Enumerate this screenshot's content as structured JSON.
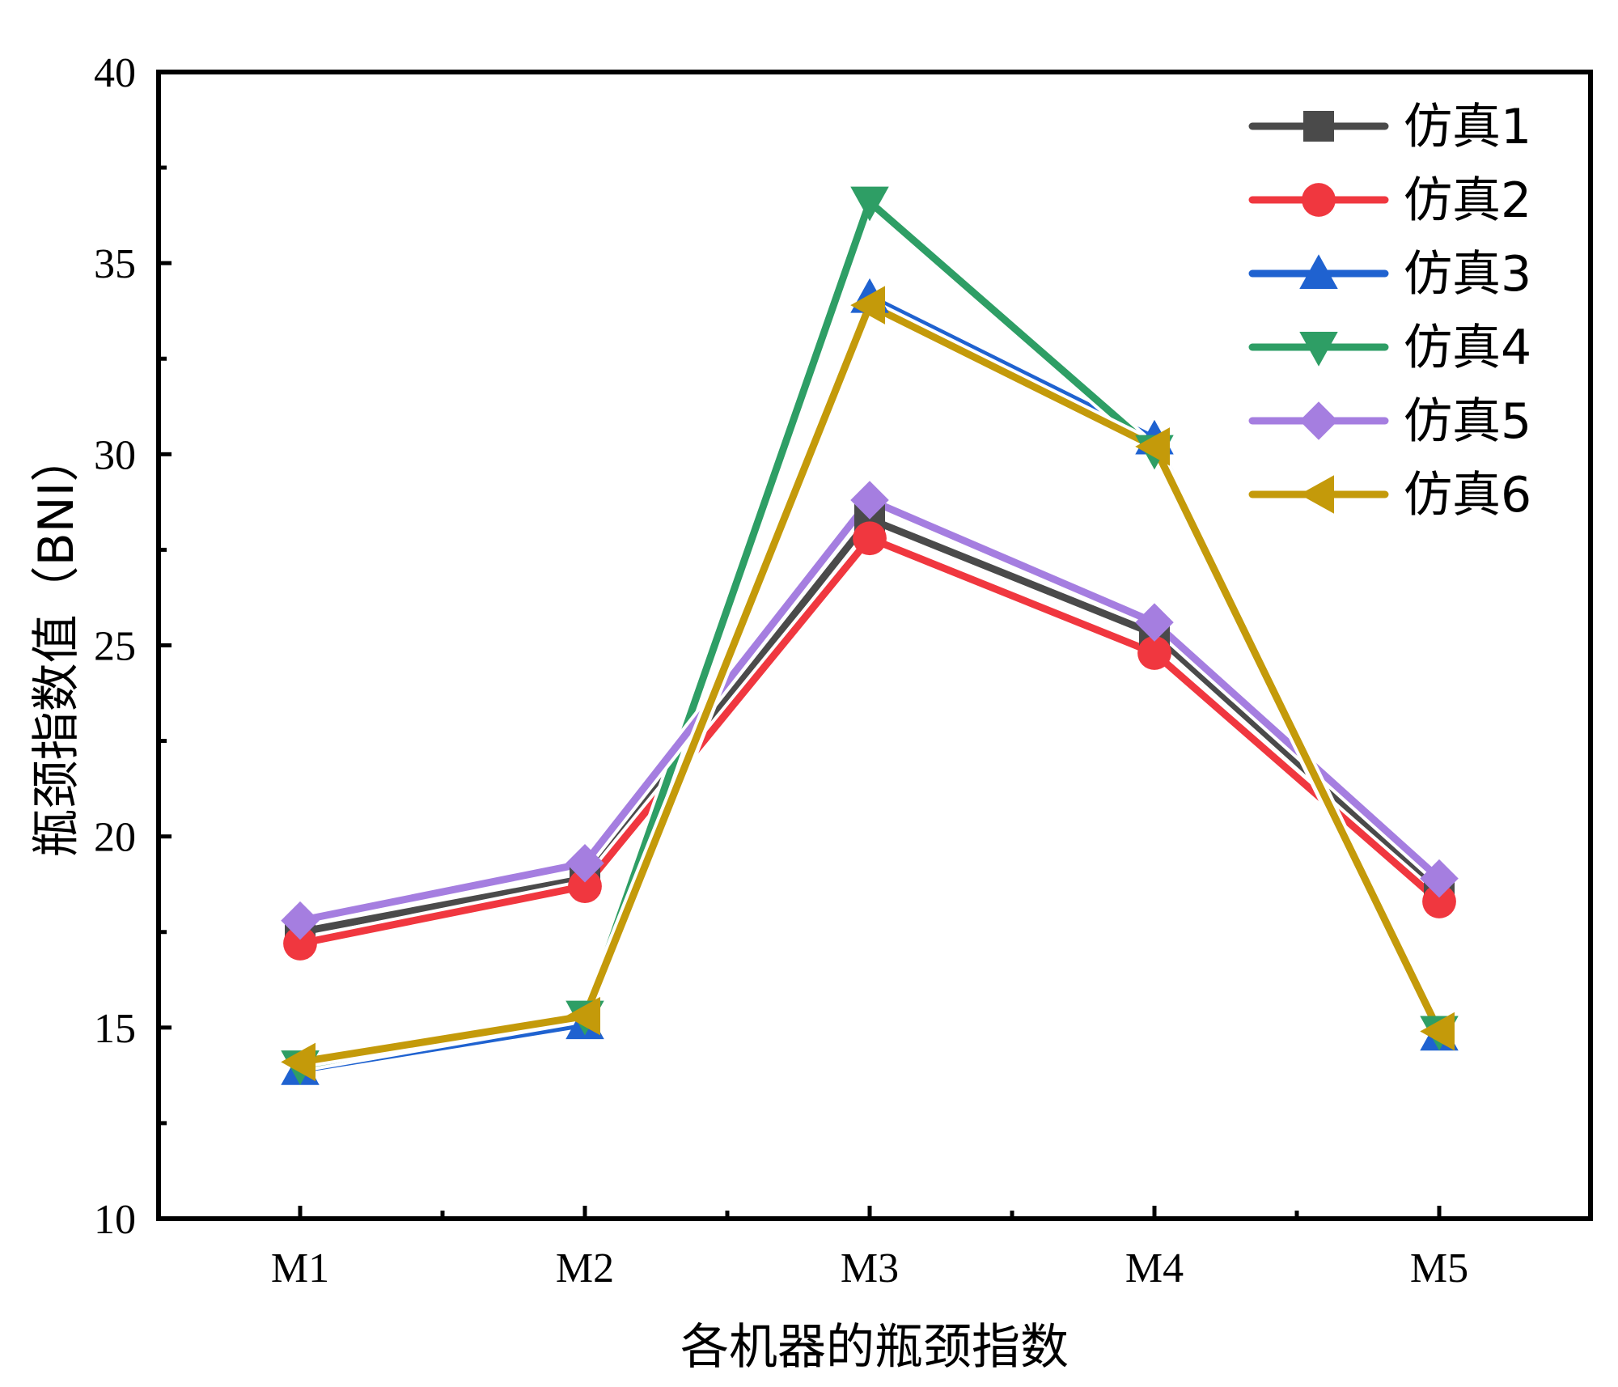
{
  "chart_data": {
    "type": "line",
    "title": "",
    "xlabel": "各机器的瓶颈指数",
    "ylabel": "瓶颈指数值（BNI）",
    "categories": [
      "M1",
      "M2",
      "M3",
      "M4",
      "M5"
    ],
    "ylim": [
      10,
      40
    ],
    "yticks": [
      10,
      15,
      20,
      25,
      30,
      35,
      40
    ],
    "grid": false,
    "legend_position": "top-right",
    "series": [
      {
        "name": "仿真1",
        "color": "#4a4a4a",
        "marker": "square",
        "values": [
          17.5,
          18.9,
          28.3,
          25.3,
          18.6
        ]
      },
      {
        "name": "仿真2",
        "color": "#f0373f",
        "marker": "circle",
        "values": [
          17.2,
          18.7,
          27.8,
          24.8,
          18.3
        ]
      },
      {
        "name": "仿真3",
        "color": "#1f62d0",
        "marker": "triangle-up",
        "values": [
          13.9,
          15.1,
          34.1,
          30.4,
          14.8
        ]
      },
      {
        "name": "仿真4",
        "color": "#2e9e65",
        "marker": "triangle-down",
        "values": [
          14.0,
          15.3,
          36.6,
          30.1,
          14.9
        ]
      },
      {
        "name": "仿真5",
        "color": "#a57ee0",
        "marker": "diamond",
        "values": [
          17.8,
          19.3,
          28.8,
          25.6,
          18.9
        ]
      },
      {
        "name": "仿真6",
        "color": "#c49a0a",
        "marker": "triangle-left",
        "values": [
          14.1,
          15.3,
          33.9,
          30.2,
          14.9
        ]
      }
    ]
  }
}
